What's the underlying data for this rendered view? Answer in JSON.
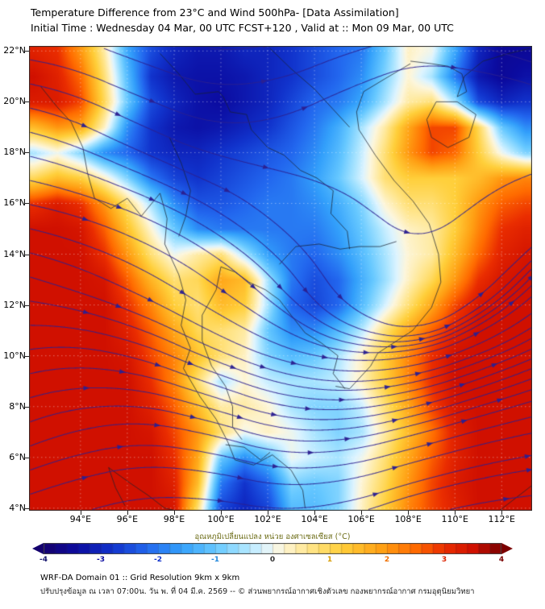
{
  "header": {
    "title_line1": "Temperature Difference from 23°C and Wind 500hPa- [Data Assimilation]",
    "title_line2": "Initial Time : Wednesday 04 Mar, 00 UTC FCST+120 , Valid at ::  Mon 09 Mar, 00 UTC"
  },
  "map": {
    "y_tick_labels": [
      "22°N",
      "20°N",
      "18°N",
      "16°N",
      "14°N",
      "12°N",
      "10°N",
      "8°N",
      "6°N",
      "4°N"
    ],
    "y_tick_lats": [
      22,
      20,
      18,
      16,
      14,
      12,
      10,
      8,
      6,
      4
    ],
    "x_tick_labels": [
      "94°E",
      "96°E",
      "98°E",
      "100°E",
      "102°E",
      "104°E",
      "106°E",
      "108°E",
      "110°E",
      "112°E"
    ],
    "x_tick_lons": [
      94,
      96,
      98,
      100,
      102,
      104,
      106,
      108,
      110,
      112
    ]
  },
  "colorbar": {
    "label": "อุณหภูมิเปลี่ยนแปลง หน่วย องศาเซลเซียส (°C)",
    "ticks": [
      {
        "label": "-4",
        "value": -4,
        "color": "#16166e"
      },
      {
        "label": "-3",
        "value": -3,
        "color": "#0b0ba0"
      },
      {
        "label": "-2",
        "value": -2,
        "color": "#1133cc"
      },
      {
        "label": "-1",
        "value": -1,
        "color": "#2288dd"
      },
      {
        "label": "0",
        "value": 0,
        "color": "#333333"
      },
      {
        "label": "1",
        "value": 1,
        "color": "#d89c00"
      },
      {
        "label": "2",
        "value": 2,
        "color": "#f07000"
      },
      {
        "label": "3",
        "value": 3,
        "color": "#dd2200"
      },
      {
        "label": "4",
        "value": 4,
        "color": "#7b0000"
      }
    ],
    "min": -4,
    "max": 4,
    "step": 0.2
  },
  "footer": {
    "line1": "WRF-DA Domain 01 :: Grid Resolution 9km x 9km",
    "line2": "ปรับปรุงข้อมูล ณ เวลา 07:00น. วัน พ. ที่ 04 มี.ค. 2569 -- © ส่วนพยากรณ์อากาศเชิงตัวเลข กองพยากรณ์อากาศ กรมอุตุนิยมวิทยา"
  },
  "chart_data": {
    "type": "heatmap",
    "title": "Temperature Difference from 23°C and Wind 500hPa [Data Assimilation]",
    "units": "°C",
    "lon_range": [
      91.8,
      113.3
    ],
    "lat_range": [
      3.9,
      22.2
    ],
    "lons": [
      92,
      93,
      94,
      95,
      96,
      97,
      98,
      99,
      100,
      101,
      102,
      103,
      104,
      105,
      106,
      107,
      108,
      109,
      110,
      111,
      112,
      113
    ],
    "lats": [
      22,
      21,
      20,
      19,
      18,
      17,
      16,
      15,
      14,
      13,
      12,
      11,
      10,
      9,
      8,
      7,
      6,
      5,
      4
    ],
    "values": [
      [
        3.2,
        3,
        2,
        0.5,
        -1.5,
        -2.5,
        -3,
        -3.2,
        -3.2,
        -3,
        -3,
        -2.8,
        -2.5,
        -2.2,
        -2,
        -1,
        0.3,
        0,
        -1.5,
        -3,
        -3.5,
        -3.5
      ],
      [
        3.5,
        3.2,
        2.5,
        0.8,
        -1.2,
        -2.8,
        -3.2,
        -3.3,
        -3.3,
        -3.2,
        -3,
        -2.8,
        -2.5,
        -2.2,
        -1.8,
        -0.8,
        0.2,
        -0.5,
        -2,
        -3.2,
        -3.5,
        -3.3
      ],
      [
        3.3,
        3.3,
        2.8,
        1,
        -1,
        -2.5,
        -3,
        -3.3,
        -3.4,
        -3.2,
        -3,
        -2.6,
        -2.2,
        -2,
        -1.5,
        -0.5,
        0.5,
        0.8,
        -0.5,
        -2.5,
        -3,
        -2.8
      ],
      [
        1.5,
        2,
        1.8,
        0.3,
        -1.8,
        -2.8,
        -3.2,
        -3.3,
        -3.2,
        -3,
        -2.8,
        -2.4,
        -2,
        -1.4,
        -0.5,
        0.5,
        1.8,
        2.8,
        2.8,
        1,
        -1,
        -1.8
      ],
      [
        -0.5,
        0,
        -0.8,
        -1.8,
        -2.2,
        -2.8,
        -3,
        -3,
        -2.8,
        -2.6,
        -2.4,
        -2.2,
        -1.8,
        -1.2,
        -0.3,
        0.8,
        2,
        2.8,
        2.5,
        1.2,
        0,
        -0.8
      ],
      [
        1,
        1.5,
        1.2,
        0.3,
        -0.8,
        -2,
        -2.6,
        -2.8,
        -2.6,
        -2.4,
        -2.2,
        -2,
        -1.6,
        -1,
        -0.2,
        0.8,
        1.2,
        1.2,
        1.2,
        1.5,
        2,
        2.2
      ],
      [
        3,
        3.3,
        3,
        2,
        0.8,
        -0.5,
        -1.8,
        -2.4,
        -2.4,
        -2.2,
        -2,
        -2,
        -1.8,
        -1.4,
        -0.8,
        0.2,
        0.8,
        0.8,
        1.2,
        2,
        2.6,
        2.8
      ],
      [
        3.5,
        3.5,
        3.4,
        2.6,
        1.4,
        0.2,
        -1,
        -1.8,
        -2,
        -2,
        -2,
        -2,
        -2,
        -1.6,
        -1,
        -0.3,
        0.3,
        0.5,
        1.2,
        2.2,
        3,
        3.2
      ],
      [
        3.5,
        3.5,
        3.5,
        3,
        2,
        0.8,
        0,
        0.5,
        0.8,
        -0.5,
        -1.6,
        -2,
        -2.2,
        -1.8,
        -1.2,
        -0.5,
        0.2,
        0.5,
        1.5,
        2.5,
        3.2,
        3.4
      ],
      [
        3.5,
        3.5,
        3.5,
        3.4,
        2.6,
        1.6,
        0.8,
        1,
        1.8,
        1.5,
        -0.5,
        -2,
        -2.5,
        -2.2,
        -1.4,
        -0.6,
        0.3,
        1,
        2,
        3,
        3.4,
        3.5
      ],
      [
        3.5,
        3.5,
        3.5,
        3.5,
        3,
        2.2,
        1.2,
        0.8,
        1.5,
        1.2,
        -0.5,
        -2.2,
        -2.6,
        -2.2,
        -1.2,
        -0.2,
        0.8,
        1.8,
        2.8,
        3.4,
        3.5,
        3.5
      ],
      [
        3.5,
        3.5,
        3.5,
        3.5,
        3.2,
        2.6,
        1.8,
        1,
        0.8,
        0.5,
        -1,
        -1.8,
        -1.8,
        -1.2,
        -0.4,
        0.8,
        1.8,
        2.6,
        3.2,
        3.5,
        3.5,
        3.5
      ],
      [
        3.5,
        3.5,
        3.5,
        3.5,
        3.4,
        2.8,
        2.2,
        1.4,
        0.8,
        0.3,
        -0.8,
        -1.2,
        -1,
        -0.5,
        0.3,
        1.2,
        2.2,
        3,
        3.5,
        3.5,
        3.5,
        3.5
      ],
      [
        3.5,
        3.5,
        3.5,
        3.5,
        3.5,
        3,
        2.2,
        0.8,
        -0.5,
        0.2,
        -0.3,
        -0.5,
        -0.5,
        -0.3,
        0.3,
        1.2,
        2.2,
        3,
        3.5,
        3.5,
        3.5,
        3.5
      ],
      [
        3.5,
        3.5,
        3.5,
        3.5,
        3.5,
        3.2,
        2.6,
        1.5,
        0.5,
        0.5,
        0.2,
        -0.5,
        -0.8,
        -0.8,
        -0.3,
        0.8,
        1.8,
        2.8,
        3.4,
        3.5,
        3.5,
        3.5
      ],
      [
        3.5,
        3.5,
        3.5,
        3.5,
        3.5,
        3.4,
        2.8,
        2,
        0.8,
        0,
        0.3,
        0,
        -0.5,
        -0.8,
        -0.5,
        0.5,
        1.5,
        2.4,
        3.2,
        3.5,
        3.5,
        3.5
      ],
      [
        3.5,
        3.5,
        3.5,
        3.5,
        3.5,
        3.5,
        3,
        1.8,
        -1,
        -1.8,
        -1.2,
        0,
        -0.3,
        -0.5,
        0,
        0.8,
        1.8,
        2.6,
        3.2,
        3.5,
        3.5,
        3.5
      ],
      [
        3.5,
        3.5,
        3.5,
        3.5,
        3.5,
        3.5,
        3.2,
        1.5,
        -2,
        -2.8,
        -2.2,
        -0.8,
        -1,
        -0.8,
        0.2,
        1,
        2,
        2.8,
        3.3,
        3.5,
        3.5,
        3.5
      ],
      [
        3.5,
        3.5,
        3.5,
        3.5,
        3.5,
        3.5,
        3.4,
        0.8,
        -2.6,
        -3,
        -2.6,
        -1.2,
        -1.2,
        -0.8,
        0.3,
        1.2,
        2.2,
        2.8,
        3.2,
        3.5,
        3.5,
        3.5
      ]
    ],
    "colormap_stops": [
      [
        -4,
        "#14006e"
      ],
      [
        -3.4,
        "#0b0ba0"
      ],
      [
        -2.8,
        "#1133cc"
      ],
      [
        -2.2,
        "#2266ee"
      ],
      [
        -1.6,
        "#33a0fb"
      ],
      [
        -1,
        "#66c8ff"
      ],
      [
        -0.5,
        "#a8e4ff"
      ],
      [
        -0.15,
        "#ddf4ff"
      ],
      [
        0.15,
        "#fdf6dc"
      ],
      [
        0.6,
        "#ffe792"
      ],
      [
        1.2,
        "#ffcf3a"
      ],
      [
        1.9,
        "#ffa014"
      ],
      [
        2.5,
        "#ff6a00"
      ],
      [
        3,
        "#ea2d00"
      ],
      [
        3.5,
        "#d01000"
      ],
      [
        4,
        "#7b0000"
      ]
    ],
    "wind": {
      "lons": [
        92,
        95,
        98,
        101,
        104,
        107,
        110,
        113
      ],
      "lats": [
        22,
        19,
        16,
        13,
        10,
        7,
        4
      ],
      "u": [
        [
          1,
          1,
          1,
          1,
          1,
          1,
          1,
          1
        ],
        [
          1,
          1,
          0.9,
          0.9,
          1,
          1,
          1,
          1
        ],
        [
          1,
          0.95,
          0.9,
          0.8,
          0.7,
          0.6,
          0.7,
          0.9
        ],
        [
          0.9,
          0.85,
          0.8,
          0.7,
          0.5,
          0.45,
          0.6,
          0.8
        ],
        [
          1,
          0.95,
          0.9,
          0.85,
          0.8,
          0.8,
          0.9,
          1
        ],
        [
          1,
          1,
          0.95,
          0.9,
          0.9,
          0.9,
          0.95,
          1
        ],
        [
          1,
          1,
          1,
          0.95,
          0.9,
          0.95,
          1,
          1
        ]
      ],
      "v": [
        [
          -0.15,
          -0.35,
          -0.3,
          0.1,
          0.35,
          0.25,
          -0.2,
          -0.3
        ],
        [
          -0.25,
          -0.45,
          -0.35,
          0.05,
          0.45,
          0.5,
          0.1,
          -0.25
        ],
        [
          -0.2,
          -0.3,
          -0.4,
          -0.5,
          -0.55,
          -0.35,
          0.45,
          0.65
        ],
        [
          -0.25,
          -0.35,
          -0.45,
          -0.55,
          -0.7,
          -0.5,
          0.5,
          0.75
        ],
        [
          0.15,
          -0.15,
          -0.35,
          -0.3,
          -0.15,
          0.05,
          0.3,
          0.4
        ],
        [
          0.35,
          0.15,
          -0.15,
          -0.25,
          0,
          0.2,
          0.25,
          0.2
        ],
        [
          0.3,
          0.25,
          0,
          -0.15,
          0.1,
          0.3,
          0.2,
          0.1
        ]
      ]
    },
    "coastlines": [
      [
        [
          92.3,
          20.6
        ],
        [
          93,
          19.8
        ],
        [
          93.6,
          19.2
        ],
        [
          94.1,
          18.2
        ],
        [
          94.3,
          17.2
        ],
        [
          94.6,
          16.2
        ],
        [
          95.3,
          15.8
        ],
        [
          96,
          16.2
        ],
        [
          96.6,
          15.5
        ],
        [
          97.4,
          16.4
        ],
        [
          97.7,
          15.4
        ],
        [
          97.6,
          14.4
        ],
        [
          98.2,
          13.2
        ],
        [
          98.5,
          12.2
        ],
        [
          98.3,
          11.2
        ],
        [
          98.7,
          10.3
        ],
        [
          98.4,
          9.5
        ],
        [
          99.1,
          8.4
        ],
        [
          99.8,
          7.5
        ],
        [
          100.3,
          6.6
        ],
        [
          100.6,
          5.9
        ],
        [
          101.4,
          5.7
        ],
        [
          102.2,
          6.1
        ],
        [
          103,
          5.5
        ],
        [
          103.5,
          4.7
        ],
        [
          103.6,
          4
        ]
      ],
      [
        [
          100,
          13.5
        ],
        [
          99.8,
          12.6
        ],
        [
          99.2,
          11.6
        ],
        [
          99.2,
          10.6
        ],
        [
          99.6,
          9.6
        ],
        [
          100.2,
          8.8
        ],
        [
          100.5,
          8
        ],
        [
          100.5,
          7.2
        ],
        [
          100.9,
          6.7
        ]
      ],
      [
        [
          100,
          13.5
        ],
        [
          100.6,
          13.3
        ],
        [
          101.2,
          12.9
        ],
        [
          101.9,
          12.6
        ],
        [
          102.5,
          12.2
        ],
        [
          103,
          11.6
        ],
        [
          103.6,
          10.9
        ],
        [
          104.3,
          10.5
        ],
        [
          105,
          10
        ],
        [
          104.8,
          9.3
        ],
        [
          105.3,
          8.7
        ]
      ],
      [
        [
          108.1,
          21.5
        ],
        [
          107,
          20.9
        ],
        [
          106.1,
          20.4
        ],
        [
          105.8,
          19.6
        ],
        [
          105.9,
          18.9
        ],
        [
          106.6,
          17.9
        ],
        [
          107.4,
          16.9
        ],
        [
          108.2,
          16.1
        ],
        [
          108.9,
          15.2
        ],
        [
          109.3,
          14
        ],
        [
          109.4,
          12.9
        ],
        [
          109,
          11.9
        ],
        [
          108.2,
          11
        ],
        [
          107.2,
          10.4
        ],
        [
          106.7,
          10.1
        ],
        [
          106.4,
          9.6
        ],
        [
          105.5,
          8.7
        ],
        [
          104.9,
          8.8
        ]
      ],
      [
        [
          108.1,
          21.6
        ],
        [
          109,
          21.5
        ],
        [
          109.7,
          21.4
        ],
        [
          110.3,
          21.1
        ],
        [
          110.5,
          20.4
        ],
        [
          110.1,
          20.2
        ],
        [
          110.4,
          21
        ],
        [
          111.2,
          21.6
        ],
        [
          112.3,
          21.9
        ],
        [
          113.2,
          22.1
        ]
      ],
      [
        [
          109.2,
          20
        ],
        [
          110.1,
          20
        ],
        [
          110.9,
          19.5
        ],
        [
          110.6,
          18.6
        ],
        [
          109.7,
          18.2
        ],
        [
          109,
          18.6
        ],
        [
          108.8,
          19.3
        ],
        [
          109.2,
          20
        ]
      ],
      [
        [
          95.2,
          5.6
        ],
        [
          96.1,
          5
        ],
        [
          96.9,
          4.5
        ],
        [
          97.6,
          4
        ],
        [
          98.1,
          3.9
        ]
      ],
      [
        [
          95.2,
          5.6
        ],
        [
          95.5,
          4.8
        ],
        [
          95.9,
          4.1
        ]
      ],
      [
        [
          111.9,
          3.9
        ],
        [
          112.6,
          4.4
        ],
        [
          113.3,
          4.9
        ]
      ],
      [
        [
          100.1,
          20.2
        ],
        [
          100.4,
          19.6
        ],
        [
          101.1,
          19.5
        ],
        [
          101.3,
          18.9
        ],
        [
          102,
          18.2
        ],
        [
          102.7,
          17.9
        ],
        [
          103.4,
          17.3
        ],
        [
          104.1,
          17
        ],
        [
          104.8,
          16.5
        ],
        [
          104.7,
          15.6
        ],
        [
          105.4,
          14.9
        ],
        [
          105.5,
          14.2
        ]
      ],
      [
        [
          102.5,
          13.6
        ],
        [
          103.2,
          14.3
        ],
        [
          104.2,
          14.4
        ],
        [
          105.1,
          14.2
        ],
        [
          105.9,
          14.3
        ],
        [
          106.8,
          14.3
        ],
        [
          107.5,
          14.5
        ]
      ],
      [
        [
          97.8,
          18.6
        ],
        [
          98.3,
          17.6
        ],
        [
          98.7,
          16.5
        ],
        [
          98.5,
          15.5
        ],
        [
          98.2,
          14.7
        ]
      ],
      [
        [
          102.1,
          22.1
        ],
        [
          103,
          21.3
        ],
        [
          104,
          20.5
        ],
        [
          104.8,
          19.7
        ],
        [
          105.5,
          19
        ]
      ],
      [
        [
          97.4,
          21.9
        ],
        [
          98.2,
          21.1
        ],
        [
          98.9,
          20.3
        ],
        [
          99.9,
          20.4
        ],
        [
          100.1,
          20.2
        ]
      ],
      [
        [
          100.2,
          6.5
        ],
        [
          101,
          6.4
        ],
        [
          101.7,
          5.9
        ],
        [
          102.1,
          6.2
        ]
      ]
    ]
  }
}
